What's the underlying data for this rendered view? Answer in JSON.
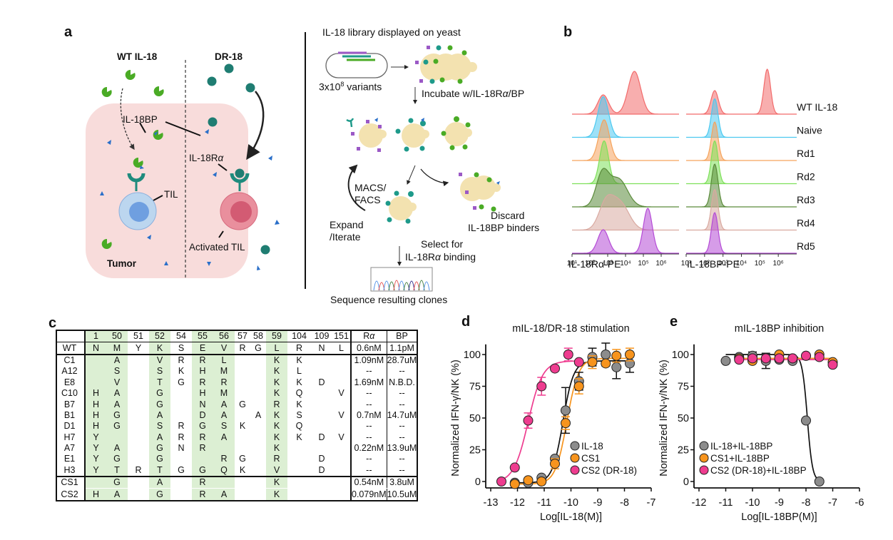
{
  "panels": {
    "a": {
      "label": "a",
      "wt_title": "WT IL-18",
      "dr_title": "DR-18",
      "il18bp": "IL-18BP",
      "il18ra": "IL-18R",
      "alpha": "α",
      "til": "TIL",
      "activated_til": "Activated TIL",
      "tumor": "Tumor",
      "library_title": "IL-18 library displayed on yeast",
      "variants_base": "3x10",
      "variants_exp": "8",
      "variants_suffix": " variants",
      "incubate": "Incubate w/IL-18R",
      "incubate_suffix": "/BP",
      "macs": "MACS/",
      "facs": "FACS",
      "expand": "Expand",
      "iterate": "/Iterate",
      "discard1": "Discard",
      "discard2": "IL-18BP binders",
      "select1": "Select for",
      "select2_pre": "IL-18R",
      "select2_post": " binding",
      "sequence": "Sequence resulting clones"
    },
    "b": {
      "label": "b",
      "rows": [
        "WT IL-18",
        "Naive",
        "Rd1",
        "Rd2",
        "Rd3",
        "Rd4",
        "Rd5"
      ],
      "row_colors": [
        "#f26b6b",
        "#4cc9f0",
        "#f5a35c",
        "#7ee05a",
        "#5a8a3a",
        "#d9a9a0",
        "#b44bd6"
      ],
      "tick_labels": [
        "10¹",
        "10²",
        "10³",
        "10⁴",
        "10⁵",
        "10⁶"
      ],
      "xlabel_left": "IL-18Rα-PE",
      "xlabel_right": "IL-18BP-PE"
    },
    "c": {
      "label": "c",
      "positions": [
        "1",
        "50",
        "51",
        "52",
        "54",
        "55",
        "56",
        "57",
        "58",
        "59",
        "104",
        "109",
        "151"
      ],
      "shaded_positions": [
        "1",
        "50",
        "52",
        "55",
        "56",
        "59"
      ],
      "ra_header": "Rα",
      "bp_header": "BP",
      "wt": {
        "name": "WT",
        "residues": [
          "N",
          "M",
          "Y",
          "K",
          "S",
          "E",
          "V",
          "R",
          "G",
          "L",
          "R",
          "N",
          "L"
        ],
        "ra": "0.6nM",
        "bp": "1.1pM"
      },
      "clones": [
        {
          "name": "C1",
          "residues": [
            "",
            "A",
            "",
            "V",
            "R",
            "R",
            "L",
            "",
            "",
            "K",
            "K",
            "",
            ""
          ],
          "ra": "1.09nM",
          "bp": "28.7uM"
        },
        {
          "name": "A12",
          "residues": [
            "",
            "S",
            "",
            "S",
            "K",
            "H",
            "M",
            "",
            "",
            "K",
            "L",
            "",
            ""
          ],
          "ra": "--",
          "bp": "--"
        },
        {
          "name": "E8",
          "residues": [
            "",
            "V",
            "",
            "T",
            "G",
            "R",
            "R",
            "",
            "",
            "K",
            "K",
            "D",
            ""
          ],
          "ra": "1.69nM",
          "bp": "N.B.D."
        },
        {
          "name": "C10",
          "residues": [
            "H",
            "A",
            "",
            "G",
            "",
            "H",
            "M",
            "",
            "",
            "K",
            "Q",
            "",
            "V"
          ],
          "ra": "--",
          "bp": "--"
        },
        {
          "name": "B7",
          "residues": [
            "H",
            "A",
            "",
            "G",
            "",
            "N",
            "A",
            "G",
            "",
            "R",
            "K",
            "",
            ""
          ],
          "ra": "--",
          "bp": "--"
        },
        {
          "name": "B1",
          "residues": [
            "H",
            "G",
            "",
            "A",
            "",
            "D",
            "A",
            "",
            "A",
            "K",
            "S",
            "",
            "V"
          ],
          "ra": "0.7nM",
          "bp": "14.7uM"
        },
        {
          "name": "D1",
          "residues": [
            "H",
            "G",
            "",
            "S",
            "R",
            "G",
            "S",
            "K",
            "",
            "K",
            "Q",
            "",
            ""
          ],
          "ra": "--",
          "bp": "--"
        },
        {
          "name": "H7",
          "residues": [
            "Y",
            "",
            "",
            "A",
            "R",
            "R",
            "A",
            "",
            "",
            "K",
            "K",
            "D",
            "V"
          ],
          "ra": "--",
          "bp": "--"
        },
        {
          "name": "A7",
          "residues": [
            "Y",
            "A",
            "",
            "G",
            "N",
            "R",
            "",
            "",
            "",
            "K",
            "",
            "",
            ""
          ],
          "ra": "0.22nM",
          "bp": "13.9uM"
        },
        {
          "name": "E1",
          "residues": [
            "Y",
            "G",
            "",
            "G",
            "",
            "",
            "R",
            "G",
            "",
            "R",
            "",
            "D",
            ""
          ],
          "ra": "--",
          "bp": "--"
        },
        {
          "name": "H3",
          "residues": [
            "Y",
            "T",
            "R",
            "T",
            "G",
            "G",
            "Q",
            "K",
            "",
            "V",
            "",
            "D",
            ""
          ],
          "ra": "--",
          "bp": "--"
        }
      ],
      "consensus": [
        {
          "name": "CS1",
          "residues": [
            "",
            "G",
            "",
            "A",
            "",
            "R",
            "",
            "",
            "",
            "K",
            "",
            "",
            ""
          ],
          "ra": "0.54nM",
          "bp": "3.8uM"
        },
        {
          "name": "CS2",
          "residues": [
            "H",
            "A",
            "",
            "G",
            "",
            "R",
            "A",
            "",
            "",
            "K",
            "",
            "",
            ""
          ],
          "ra": "0.079nM",
          "bp": "10.5uM"
        }
      ]
    },
    "d": {
      "label": "d"
    },
    "e": {
      "label": "e"
    }
  },
  "chart_data": [
    {
      "type": "scatter",
      "id": "d",
      "title": "mIL-18/DR-18 stimulation",
      "xlabel": "Log[IL-18(M)]",
      "ylabel": "Normalized IFN-γ/NK (%)",
      "xlim": [
        -13,
        -7
      ],
      "ylim": [
        0,
        100
      ],
      "xticks": [
        -13,
        -12,
        -11,
        -10,
        -9,
        -8,
        -7
      ],
      "yticks": [
        0,
        25,
        50,
        75,
        100
      ],
      "legend_position": "bottom-right",
      "series": [
        {
          "name": "IL-18",
          "color": "#8c8c8c",
          "x": [
            -12.1,
            -11.6,
            -11.1,
            -10.6,
            -10.2,
            -9.7,
            -9.2,
            -8.7,
            -8.3,
            -7.8
          ],
          "y": [
            -1,
            -1,
            3,
            18,
            56,
            79,
            98,
            100,
            90,
            93
          ],
          "err": [
            0,
            0,
            0,
            0,
            18,
            7,
            7,
            9,
            9,
            7
          ],
          "fit": {
            "bottom": -1,
            "top": 95,
            "logEC50": -10.3,
            "hill": 2.2
          }
        },
        {
          "name": "CS1",
          "color": "#f7941d",
          "x": [
            -12.1,
            -11.6,
            -11.1,
            -10.6,
            -10.2,
            -9.7,
            -9.2,
            -8.7,
            -8.3,
            -7.8
          ],
          "y": [
            -2,
            1,
            0,
            14,
            46,
            75,
            94,
            93,
            99,
            100
          ],
          "err": [
            0,
            0,
            0,
            4,
            5,
            6,
            5,
            0,
            5,
            5
          ],
          "fit": {
            "bottom": -2,
            "top": 97,
            "logEC50": -10.15,
            "hill": 2.0
          }
        },
        {
          "name": "CS2 (DR-18)",
          "color": "#ee3c8f",
          "x": [
            -12.6,
            -12.1,
            -11.6,
            -11.1,
            -10.6,
            -10.1,
            -9.7
          ],
          "y": [
            0,
            11,
            48,
            75,
            89,
            100,
            94
          ],
          "err": [
            0,
            0,
            6,
            7,
            0,
            5,
            0
          ],
          "fit": {
            "bottom": -1,
            "top": 95,
            "logEC50": -11.6,
            "hill": 1.6
          }
        }
      ]
    },
    {
      "type": "scatter",
      "id": "e",
      "title": "mIL-18BP inhibition",
      "xlabel": "Log[IL-18BP(M)]",
      "ylabel": "Normalized IFN-γ/NK (%)",
      "xlim": [
        -12,
        -6
      ],
      "ylim": [
        0,
        100
      ],
      "xticks": [
        -12,
        -11,
        -10,
        -9,
        -8,
        -7,
        -6
      ],
      "yticks": [
        0,
        25,
        50,
        75,
        100
      ],
      "legend_position": "bottom-left",
      "series": [
        {
          "name": "IL-18+IL-18BP",
          "color": "#8c8c8c",
          "x": [
            -11,
            -10.5,
            -10,
            -9.5,
            -9,
            -8.5,
            -8,
            -7.5
          ],
          "y": [
            95,
            98,
            99,
            95,
            96,
            95,
            48,
            0
          ],
          "err": [
            0,
            0,
            3,
            6,
            0,
            0,
            0,
            0
          ],
          "fit": {
            "top": 100,
            "bottom": 0,
            "logIC50": -7.95,
            "hill": -4.5
          }
        },
        {
          "name": "CS1+IL-18BP",
          "color": "#f7941d",
          "x": [
            -10.5,
            -10,
            -9,
            -8.5,
            -8,
            -7.5,
            -7
          ],
          "y": [
            97,
            95,
            100,
            97,
            99,
            100,
            94
          ],
          "err": [
            0,
            0,
            0,
            0,
            0,
            0,
            0
          ],
          "fit": {
            "flat": 97
          }
        },
        {
          "name": "CS2 (DR-18)+IL-18BP",
          "color": "#ee3c8f",
          "x": [
            -10.5,
            -10,
            -9.5,
            -9,
            -8.5,
            -8,
            -7.5,
            -7
          ],
          "y": [
            96,
            97,
            97,
            97,
            97,
            99,
            98,
            92
          ],
          "err": [
            0,
            0,
            0,
            0,
            0,
            0,
            0,
            0
          ],
          "fit": {
            "flat": 96
          }
        }
      ]
    }
  ]
}
